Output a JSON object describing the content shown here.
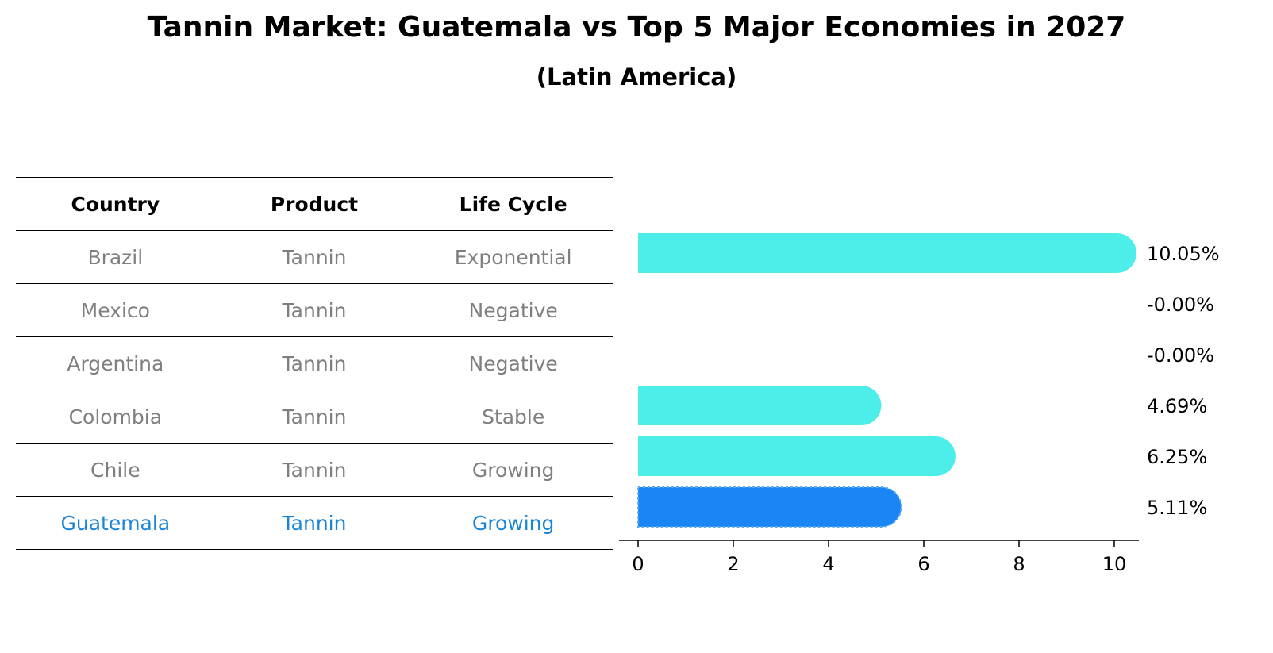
{
  "chart_data": {
    "type": "bar",
    "orientation": "horizontal",
    "title": "Tannin Market: Guatemala vs Top 5 Major Economies in 2027",
    "subtitle": "(Latin America)",
    "categories": [
      "Brazil",
      "Mexico",
      "Argentina",
      "Colombia",
      "Chile",
      "Guatemala"
    ],
    "values": [
      10.05,
      -0.0,
      -0.0,
      4.69,
      6.25,
      5.11
    ],
    "value_labels": [
      "10.05%",
      "-0.00%",
      "-0.00%",
      "4.69%",
      "6.25%",
      "5.11%"
    ],
    "highlight": "Guatemala",
    "xticks": [
      0,
      2,
      4,
      6,
      8,
      10
    ],
    "xlim": [
      -0.5,
      10.55
    ],
    "xlabel": "",
    "ylabel": "",
    "colors": {
      "bar": "#4deeea",
      "highlight": "#1a85f5"
    }
  },
  "table": {
    "headers": [
      "Country",
      "Product",
      "Life Cycle"
    ],
    "rows": [
      [
        "Brazil",
        "Tannin",
        "Exponential"
      ],
      [
        "Mexico",
        "Tannin",
        "Negative"
      ],
      [
        "Argentina",
        "Tannin",
        "Negative"
      ],
      [
        "Colombia",
        "Tannin",
        "Stable"
      ],
      [
        "Chile",
        "Tannin",
        "Growing"
      ],
      [
        "Guatemala",
        "Tannin",
        "Growing"
      ]
    ],
    "highlight_row": 5,
    "colors": {
      "text": "#7f7f7f",
      "highlight": "#1a85d6"
    }
  }
}
